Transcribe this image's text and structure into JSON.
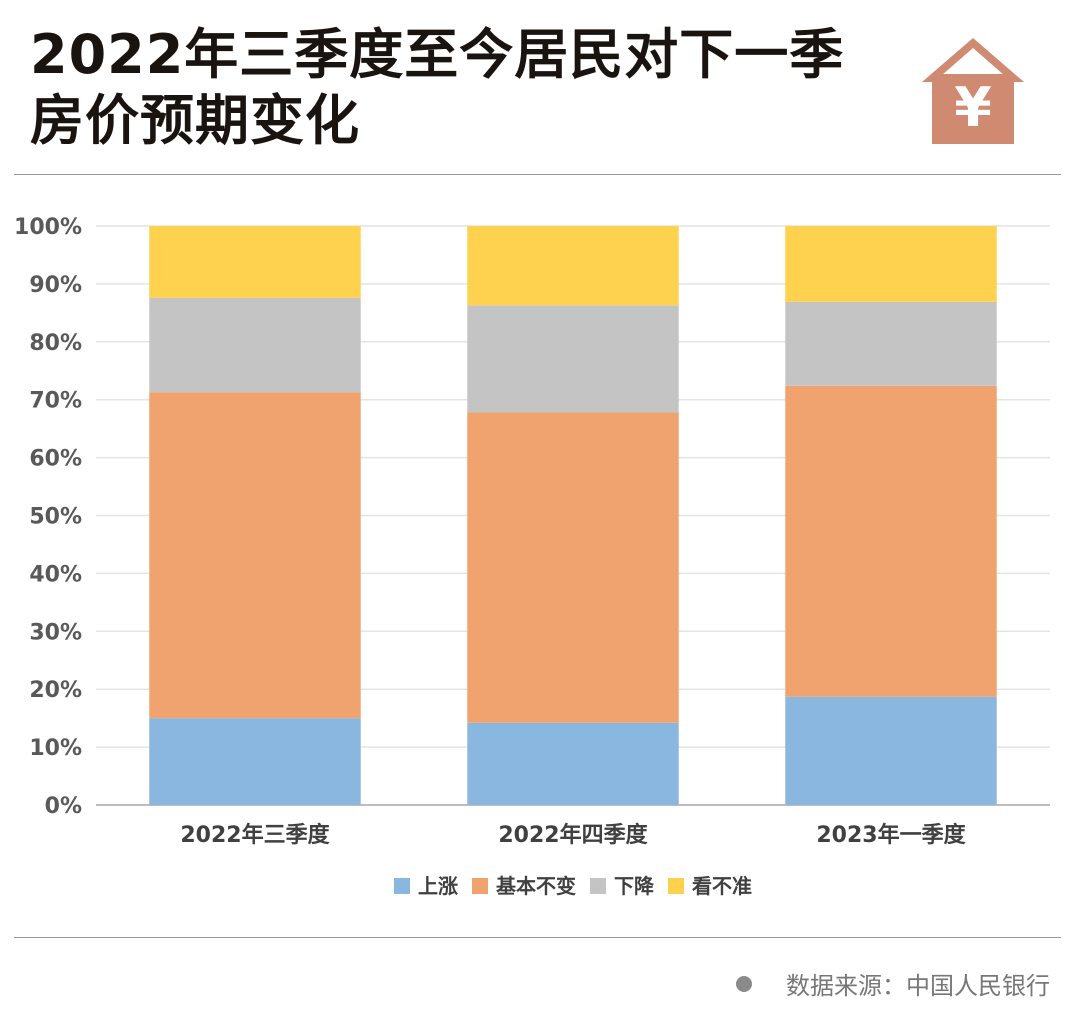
{
  "title_lines": [
    "2022年三季度至今居民对下一季",
    "房价预期变化"
  ],
  "logo": {
    "icon": "house-yen-icon",
    "symbol": "¥",
    "color": "#d08a72"
  },
  "source": {
    "text": "数据来源：中国人民银行"
  },
  "chart_data": {
    "type": "bar",
    "stacked": true,
    "categories": [
      "2022年三季度",
      "2022年四季度",
      "2023年一季度"
    ],
    "series": [
      {
        "name": "上涨",
        "values": [
          15.0,
          14.2,
          18.7
        ],
        "color": "#8ab7e0"
      },
      {
        "name": "基本不变",
        "values": [
          56.3,
          53.6,
          53.7
        ],
        "color": "#f0a36f"
      },
      {
        "name": "下降",
        "values": [
          16.3,
          18.5,
          14.5
        ],
        "color": "#c4c4c4"
      },
      {
        "name": "看不准",
        "values": [
          12.4,
          13.7,
          13.1
        ],
        "color": "#fed24e"
      }
    ],
    "y_ticks": [
      "0%",
      "10%",
      "20%",
      "30%",
      "40%",
      "50%",
      "60%",
      "70%",
      "80%",
      "90%",
      "100%"
    ],
    "ylim": [
      0,
      100
    ],
    "grid": true,
    "legend_position": "bottom"
  }
}
